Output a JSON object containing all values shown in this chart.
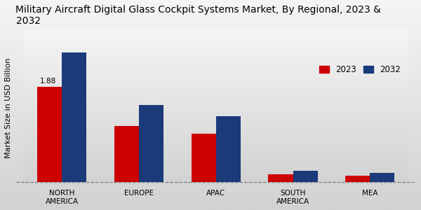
{
  "title": "Military Aircraft Digital Glass Cockpit Systems Market, By Regional, 2023 &\n2032",
  "ylabel": "Market Size in USD Billion",
  "categories": [
    "NORTH\nAMERICA",
    "EUROPE",
    "APAC",
    "SOUTH\nAMERICA",
    "MEA"
  ],
  "values_2023": [
    1.88,
    1.1,
    0.95,
    0.15,
    0.12
  ],
  "values_2032": [
    2.55,
    1.52,
    1.3,
    0.22,
    0.18
  ],
  "color_2023": "#cc0000",
  "color_2032": "#1a3a7a",
  "annotation_label": "1.88",
  "bar_width": 0.32,
  "background_color": "#e8e8e8",
  "bg_top_color": "#f5f5f5",
  "bg_bottom_color": "#d8d8d8",
  "legend_labels": [
    "2023",
    "2032"
  ],
  "title_fontsize": 10,
  "ylabel_fontsize": 8,
  "tick_fontsize": 7.5,
  "legend_fontsize": 8.5
}
